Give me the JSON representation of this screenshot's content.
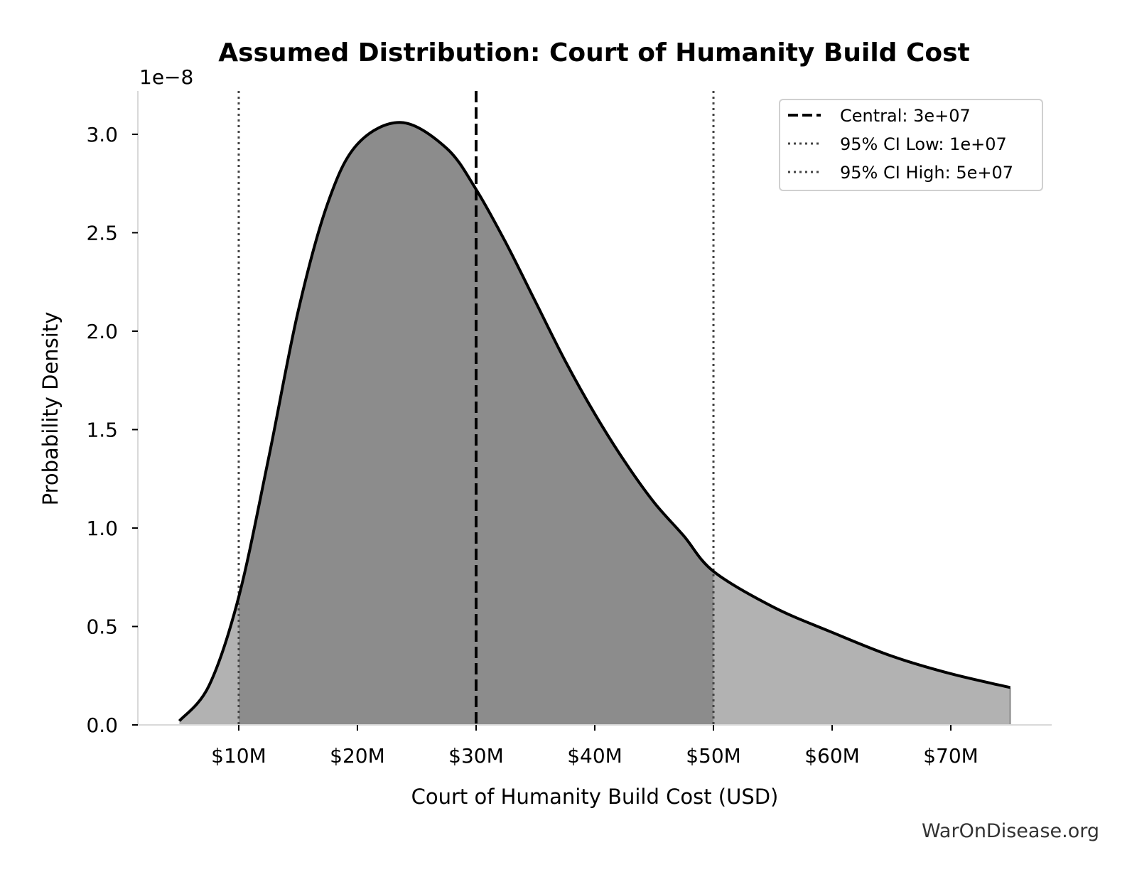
{
  "chart_data": {
    "type": "area",
    "title": "Assumed Distribution: Court of Humanity Build Cost",
    "xlabel": "Court of Humanity Build Cost (USD)",
    "ylabel": "Probability Density",
    "y_offset_label": "1e−8",
    "xlim": [
      1500000,
      78500000
    ],
    "ylim": [
      0,
      3.22
    ],
    "x_ticks": [
      10000000,
      20000000,
      30000000,
      40000000,
      50000000,
      60000000,
      70000000
    ],
    "x_tick_labels": [
      "$10M",
      "$20M",
      "$30M",
      "$40M",
      "$50M",
      "$60M",
      "$70M"
    ],
    "y_ticks": [
      0,
      0.5,
      1,
      1.5,
      2,
      2.5,
      3
    ],
    "y_tick_labels": [
      "0.0",
      "0.5",
      "1.0",
      "1.5",
      "2.0",
      "2.5",
      "3.0"
    ],
    "y_scale_note": "y values in units of 1e-8",
    "series": [
      {
        "x": [
          5000000,
          7500000,
          10000000,
          12500000,
          15000000,
          17500000,
          20000000,
          23700000,
          27500000,
          30000000,
          32500000,
          35000000,
          37500000,
          40000000,
          42500000,
          45000000,
          47500000,
          50000000,
          55000000,
          60000000,
          65000000,
          70000000,
          75000000
        ],
        "y": [
          0.02,
          0.2,
          0.65,
          1.35,
          2.1,
          2.65,
          2.95,
          3.06,
          2.93,
          2.72,
          2.45,
          2.15,
          1.85,
          1.58,
          1.34,
          1.13,
          0.96,
          0.78,
          0.6,
          0.47,
          0.35,
          0.26,
          0.19
        ]
      }
    ],
    "shaded_interval": [
      10000000,
      50000000
    ],
    "reference_lines": [
      {
        "label": "Central: 3e+07",
        "x": 30000000,
        "style": "dashed"
      },
      {
        "label": "95% CI Low: 1e+07",
        "x": 10000000,
        "style": "dotted"
      },
      {
        "label": "95% CI High: 5e+07",
        "x": 50000000,
        "style": "dotted"
      }
    ],
    "legend_position": "top-right",
    "grid": false,
    "colors": {
      "curve": "#000000",
      "interval_fill": "#8c8c8c",
      "tail_fill": "#b2b2b2",
      "spine": "#d9d9d9",
      "ref_line": "#444444"
    }
  },
  "footer": {
    "source": "WarOnDisease.org"
  }
}
